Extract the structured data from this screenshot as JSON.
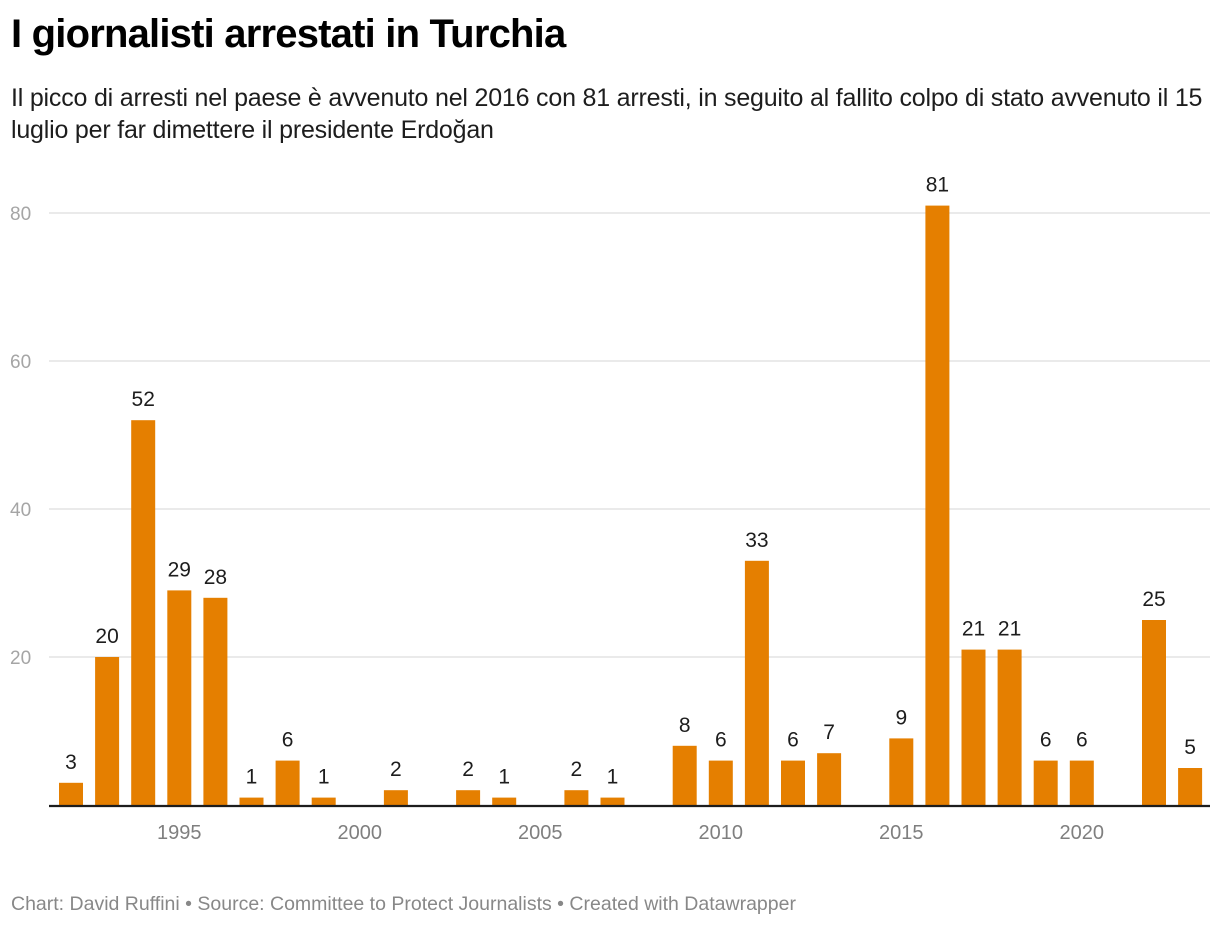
{
  "header": {
    "title": "I giornalisti arrestati in Turchia",
    "subtitle": "Il picco di arresti nel paese è avvenuto nel 2016 con 81 arresti, in seguito al fallito colpo di stato avvenuto il 15 luglio per far dimettere il presidente Erdoğan"
  },
  "footer": {
    "credits": "Chart: David Ruffini • Source: Committee to Protect Journalists • Created with Datawrapper"
  },
  "colors": {
    "bar": "#e57f00",
    "grid": "#e3e3e3",
    "axis": "#1d1d1d"
  },
  "chart_data": {
    "type": "bar",
    "title": "I giornalisti arrestati in Turchia",
    "xlabel": "",
    "ylabel": "",
    "ylim": [
      0,
      85
    ],
    "xlim": [
      1991.4,
      2023.6
    ],
    "grid": true,
    "legend": "none",
    "yticks": [
      20,
      40,
      60,
      80
    ],
    "xticks": [
      1995,
      2000,
      2005,
      2010,
      2015,
      2020
    ],
    "categories": [
      1992,
      1993,
      1994,
      1995,
      1996,
      1997,
      1998,
      1999,
      2000,
      2001,
      2002,
      2003,
      2004,
      2005,
      2006,
      2007,
      2008,
      2009,
      2010,
      2011,
      2012,
      2013,
      2014,
      2015,
      2016,
      2017,
      2018,
      2019,
      2020,
      2021,
      2022,
      2023
    ],
    "values": [
      3,
      20,
      52,
      29,
      28,
      1,
      6,
      1,
      0,
      2,
      0,
      2,
      1,
      0,
      2,
      1,
      0,
      8,
      6,
      33,
      6,
      7,
      0,
      9,
      81,
      21,
      21,
      6,
      6,
      0,
      25,
      5
    ]
  }
}
